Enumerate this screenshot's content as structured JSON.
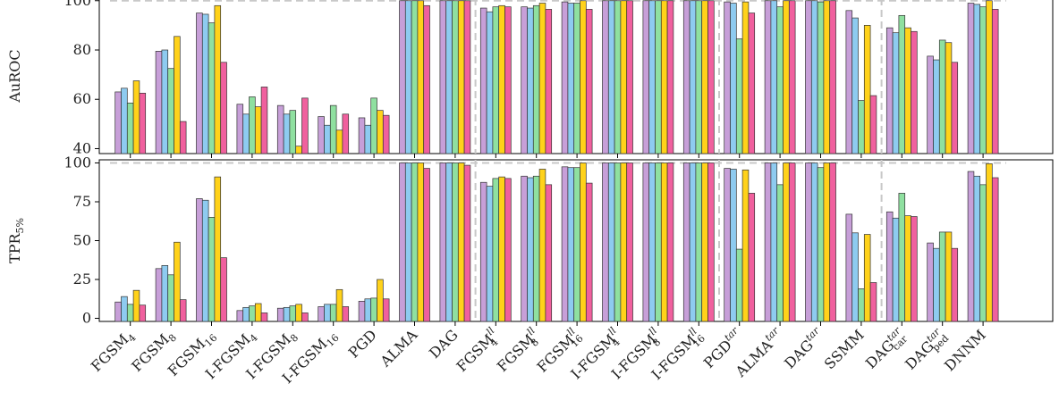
{
  "chart_data": {
    "type": "bar",
    "colors": [
      "#c79fd8",
      "#8ecbf0",
      "#8fe0a0",
      "#ffd21a",
      "#f0609e"
    ],
    "reference_line": 100,
    "categories": [
      {
        "base": "FGSM",
        "sub": "4",
        "sup": ""
      },
      {
        "base": "FGSM",
        "sub": "8",
        "sup": ""
      },
      {
        "base": "FGSM",
        "sub": "16",
        "sup": ""
      },
      {
        "base": "I-FGSM",
        "sub": "4",
        "sup": ""
      },
      {
        "base": "I-FGSM",
        "sub": "8",
        "sup": ""
      },
      {
        "base": "I-FGSM",
        "sub": "16",
        "sup": ""
      },
      {
        "base": "PGD",
        "sub": "",
        "sup": ""
      },
      {
        "base": "ALMA",
        "sub": "",
        "sup": ""
      },
      {
        "base": "DAG",
        "sub": "",
        "sup": ""
      },
      {
        "base": "FGSM",
        "sub": "4",
        "sup": "ll"
      },
      {
        "base": "FGSM",
        "sub": "8",
        "sup": "ll"
      },
      {
        "base": "FGSM",
        "sub": "16",
        "sup": "ll"
      },
      {
        "base": "I-FGSM",
        "sub": "4",
        "sup": "ll"
      },
      {
        "base": "I-FGSM",
        "sub": "8",
        "sup": "ll"
      },
      {
        "base": "I-FGSM",
        "sub": "16",
        "sup": "ll"
      },
      {
        "base": "PGD",
        "sub": "",
        "sup": "tar"
      },
      {
        "base": "ALMA",
        "sub": "",
        "sup": "tar"
      },
      {
        "base": "DAG",
        "sub": "",
        "sup": "tar"
      },
      {
        "base": "SSMM",
        "sub": "",
        "sup": ""
      },
      {
        "base": "DAG",
        "sub": "car",
        "sup": "tar"
      },
      {
        "base": "DAG",
        "sub": "ped",
        "sup": "tar"
      },
      {
        "base": "DNNM",
        "sub": "",
        "sup": ""
      }
    ],
    "group_separators_after": [
      8,
      14,
      18
    ],
    "panels": [
      {
        "ylabel": "AuROC",
        "ylim": [
          38,
          101
        ],
        "yticks": [
          40,
          60,
          80,
          100
        ],
        "values": [
          [
            63,
            64.5,
            58.5,
            67.5,
            62.5
          ],
          [
            79.5,
            80,
            72.5,
            85.5,
            51
          ],
          [
            95,
            94.5,
            91,
            98,
            75
          ],
          [
            58,
            54,
            61,
            57,
            65
          ],
          [
            57.5,
            54,
            55.5,
            41,
            60.5
          ],
          [
            53,
            49.5,
            57.5,
            47.5,
            54
          ],
          [
            52.5,
            49.5,
            60.5,
            55.5,
            53.5
          ],
          [
            100,
            100,
            100,
            100,
            98
          ],
          [
            100,
            100,
            100,
            100,
            100
          ],
          [
            97,
            95.5,
            97.5,
            98,
            97.5
          ],
          [
            97.5,
            97,
            98,
            99,
            96.5
          ],
          [
            99.5,
            99,
            99,
            100,
            96.5
          ],
          [
            100,
            100,
            100,
            100,
            100
          ],
          [
            100,
            100,
            100,
            100,
            100
          ],
          [
            100,
            100,
            100,
            100,
            100
          ],
          [
            99.5,
            99,
            84.5,
            99.5,
            95
          ],
          [
            100,
            100,
            97.5,
            100,
            100
          ],
          [
            100,
            100,
            99.5,
            100,
            100
          ],
          [
            96,
            93,
            59.5,
            90,
            61.5
          ],
          [
            89,
            87,
            94,
            89,
            87.5
          ],
          [
            77.5,
            76,
            84,
            83,
            75
          ],
          [
            99,
            98.5,
            97.5,
            100,
            96.5
          ]
        ]
      },
      {
        "ylabel": "TPR",
        "ylabel_sub": "5%",
        "ylim": [
          -2,
          102
        ],
        "yticks": [
          0,
          25,
          50,
          75,
          100
        ],
        "values": [
          [
            10.5,
            14,
            9,
            18,
            8.5
          ],
          [
            32,
            34,
            28,
            49,
            12
          ],
          [
            77,
            76,
            65,
            91,
            39
          ],
          [
            5,
            7,
            8,
            9.5,
            3.5
          ],
          [
            6.5,
            7,
            8,
            9,
            3.5
          ],
          [
            7.5,
            9,
            9,
            18.5,
            7.5
          ],
          [
            11,
            12.5,
            13,
            25,
            12.5
          ],
          [
            100,
            100,
            100,
            100,
            96.5
          ],
          [
            100,
            100,
            100,
            100,
            98.5
          ],
          [
            87.5,
            85,
            90,
            91,
            90
          ],
          [
            91.5,
            90.5,
            91.5,
            96,
            86
          ],
          [
            97.5,
            97,
            97,
            100,
            87
          ],
          [
            100,
            100,
            100,
            100,
            100
          ],
          [
            100,
            100,
            100,
            100,
            100
          ],
          [
            100,
            100,
            100,
            100,
            100
          ],
          [
            96.5,
            96,
            44.5,
            95.5,
            80.5
          ],
          [
            100,
            100,
            86,
            100,
            100
          ],
          [
            100,
            100,
            97,
            100,
            100
          ],
          [
            67,
            55,
            19,
            54,
            23
          ],
          [
            68.5,
            64.5,
            80.5,
            66,
            65.5
          ],
          [
            48.5,
            45,
            55.5,
            55.5,
            45
          ],
          [
            94.5,
            91.5,
            86,
            99.5,
            90.5
          ]
        ]
      }
    ]
  }
}
